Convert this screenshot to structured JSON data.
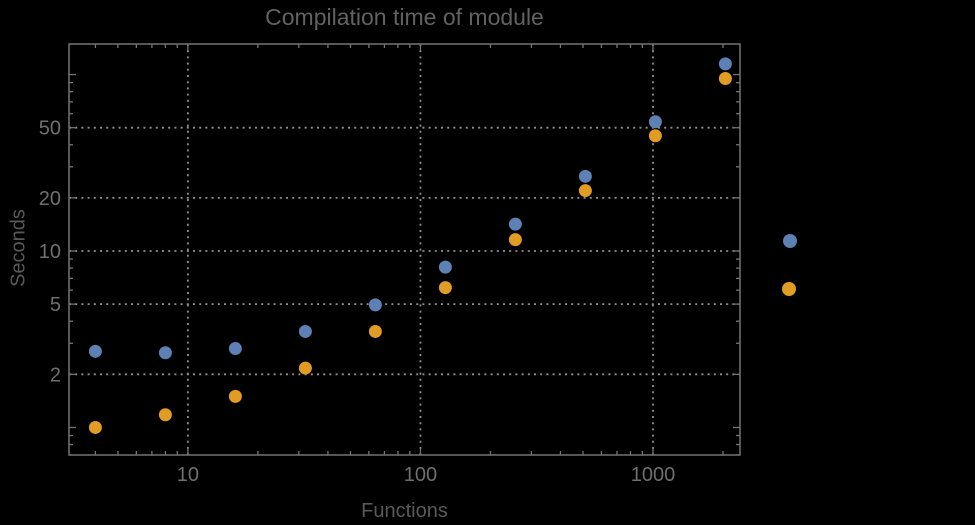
{
  "title": "Compilation time of module",
  "chart_data": {
    "type": "scatter",
    "title": "Compilation time of module",
    "xlabel": "Functions",
    "ylabel": "Seconds",
    "x_scale": "log",
    "y_scale": "log",
    "xlim": [
      3.08,
      2367
    ],
    "ylim": [
      0.698,
      149
    ],
    "grid": true,
    "legend_position": "right-outside-no-visible-text",
    "x": [
      4,
      8,
      16,
      32,
      64,
      128,
      256,
      512,
      1024,
      2048
    ],
    "series": [
      {
        "name": "series-1-blue",
        "color": "#5e81b5",
        "values": [
          2.7,
          2.65,
          2.8,
          3.5,
          4.95,
          8.1,
          14.2,
          26.5,
          54,
          115
        ]
      },
      {
        "name": "series-2-orange",
        "color": "#e19c24",
        "values": [
          1.0,
          1.18,
          1.5,
          2.17,
          3.5,
          6.2,
          11.6,
          22,
          45,
          95
        ]
      }
    ],
    "x_tick_labels": [
      {
        "value": 10,
        "label": "10"
      },
      {
        "value": 100,
        "label": "100"
      },
      {
        "value": 1000,
        "label": "1000"
      }
    ],
    "y_tick_labels": [
      {
        "value": 2,
        "label": "2"
      },
      {
        "value": 5,
        "label": "5"
      },
      {
        "value": 10,
        "label": "10"
      },
      {
        "value": 20,
        "label": "20"
      },
      {
        "value": 50,
        "label": "50"
      }
    ],
    "x_major_ticks": [
      10,
      100,
      1000
    ],
    "x_minor_ticks": [
      4,
      5,
      6,
      7,
      8,
      9,
      20,
      30,
      40,
      50,
      60,
      70,
      80,
      90,
      200,
      300,
      400,
      500,
      600,
      700,
      800,
      900,
      2000
    ],
    "y_major_ticks": [
      1,
      2,
      5,
      10,
      20,
      50,
      100
    ],
    "y_minor_ticks": [
      0.8,
      0.9,
      3,
      4,
      6,
      7,
      8,
      9,
      30,
      40,
      60,
      70,
      80,
      90
    ],
    "gridlines_x": [
      10,
      100,
      1000
    ],
    "gridlines_y": [
      2,
      5,
      10,
      20,
      50
    ],
    "legend_markers": [
      {
        "name": "series-1-blue",
        "color": "#5e81b5"
      },
      {
        "name": "series-2-orange",
        "color": "#e19c24"
      }
    ]
  },
  "colors": {
    "background": "#000000",
    "frame": "#747474",
    "gridline": "#8f8f8f",
    "tick": "#747474",
    "tick_label": "#6f6f6f",
    "title_text": "#616161",
    "axis_label_text": "#595959"
  }
}
